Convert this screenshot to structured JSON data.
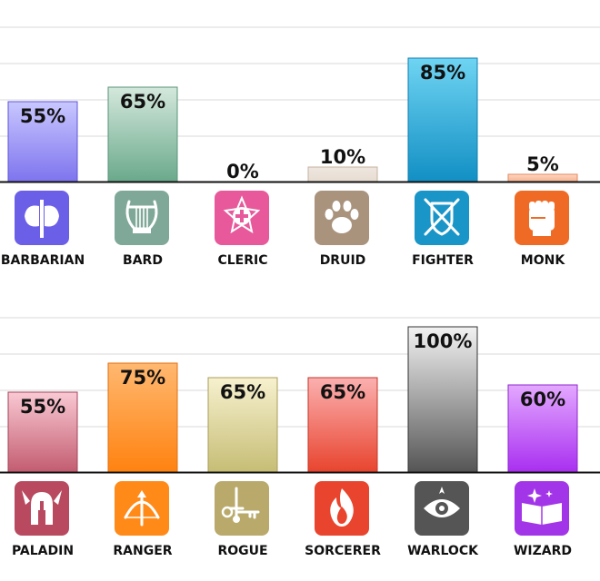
{
  "chart_data": [
    {
      "type": "bar",
      "categories": [
        "BARBARIAN",
        "BARD",
        "CLERIC",
        "DRUID",
        "FIGHTER",
        "MONK"
      ],
      "values": [
        55,
        65,
        0,
        10,
        85,
        5
      ],
      "value_labels": [
        "55%",
        "65%",
        "0%",
        "10%",
        "85%",
        "5%"
      ],
      "ylim": [
        0,
        100
      ],
      "grid": true,
      "icons": [
        "double-axe-icon",
        "lyre-icon",
        "holy-cross-icon",
        "paw-icon",
        "crossed-swords-shield-icon",
        "fist-icon"
      ],
      "colors": {
        "icon_bg": [
          "#6b5fe8",
          "#7fa898",
          "#e7599b",
          "#a9937d",
          "#1a95c8",
          "#ef6a24"
        ],
        "bar_top": [
          "#c9c7ff",
          "#d4e8dc",
          "#fbd0e4",
          "#eee7e0",
          "#6fd4f2",
          "#ffd6bf"
        ],
        "bar_bottom": [
          "#7e74ee",
          "#6aa98b",
          "#e7599b",
          "#e7dcd1",
          "#128fc4",
          "#f6b493"
        ],
        "bar_stroke": [
          "#5f55d9",
          "#5a9479",
          "#c94485",
          "#c5b3a2",
          "#0f7fb0",
          "#e28a60"
        ]
      }
    },
    {
      "type": "bar",
      "categories": [
        "PALADIN",
        "RANGER",
        "ROGUE",
        "SORCERER",
        "WARLOCK",
        "WIZARD"
      ],
      "values": [
        55,
        75,
        65,
        65,
        100,
        60
      ],
      "value_labels": [
        "55%",
        "75%",
        "65%",
        "65%",
        "100%",
        "60%"
      ],
      "ylim": [
        0,
        100
      ],
      "grid": true,
      "icons": [
        "winged-helmet-icon",
        "bow-arrow-icon",
        "dagger-key-icon",
        "flame-icon",
        "eye-icon",
        "spellbook-icon"
      ],
      "colors": {
        "icon_bg": [
          "#b8495f",
          "#ff8a18",
          "#b9a96a",
          "#e8442e",
          "#555555",
          "#a235e8"
        ],
        "bar_top": [
          "#f9c9d3",
          "#ffb870",
          "#f7f1cf",
          "#fbb0b0",
          "#f2f2f2",
          "#e3a8ff"
        ],
        "bar_bottom": [
          "#c35c70",
          "#ff8210",
          "#c6bd75",
          "#e8442e",
          "#555555",
          "#a92ff0"
        ],
        "bar_stroke": [
          "#a3435a",
          "#e07010",
          "#a89d5a",
          "#c63525",
          "#333333",
          "#8d24cc"
        ]
      }
    }
  ]
}
